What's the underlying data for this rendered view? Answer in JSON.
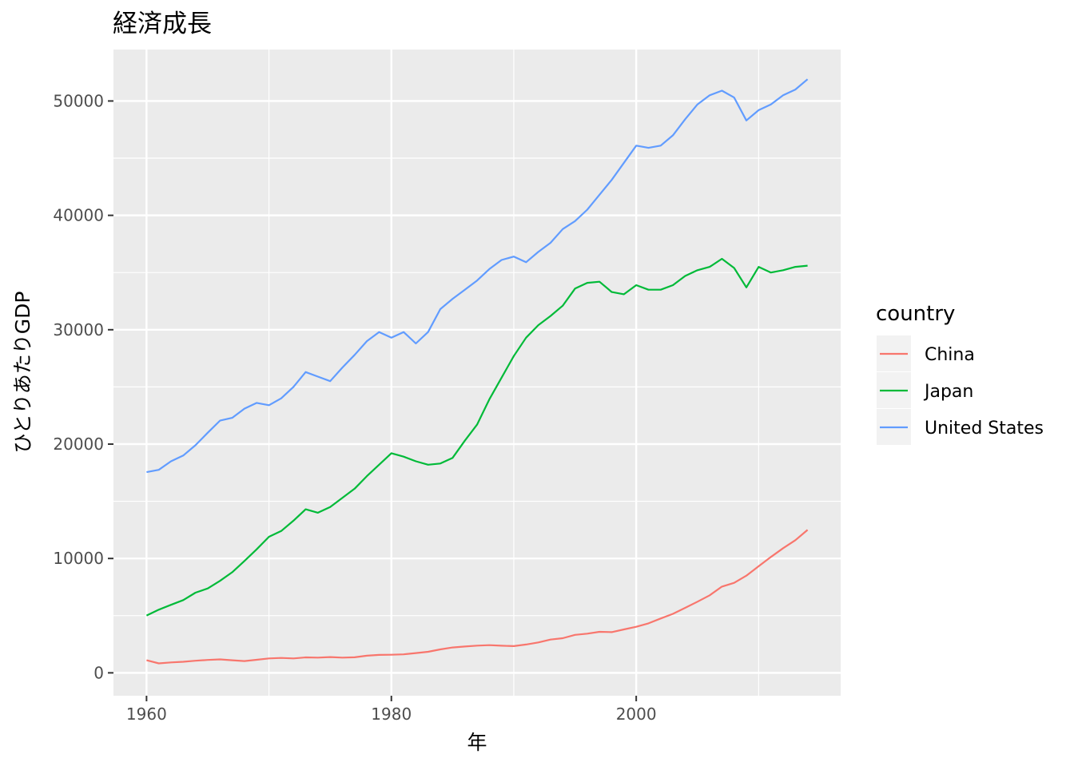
{
  "chart_data": {
    "type": "line",
    "title": "経済成長",
    "xlabel": "年",
    "ylabel": "ひとりあたりGDP",
    "xlim": [
      1957.3,
      2016.7
    ],
    "ylim": [
      -2000,
      54500
    ],
    "x_ticks": [
      1960,
      1980,
      2000
    ],
    "y_ticks": [
      0,
      10000,
      20000,
      30000,
      40000,
      50000
    ],
    "grid": true,
    "legend": {
      "title": "country",
      "position": "right"
    },
    "x": [
      1960,
      1961,
      1962,
      1963,
      1964,
      1965,
      1966,
      1967,
      1968,
      1969,
      1970,
      1971,
      1972,
      1973,
      1974,
      1975,
      1976,
      1977,
      1978,
      1979,
      1980,
      1981,
      1982,
      1983,
      1984,
      1985,
      1986,
      1987,
      1988,
      1989,
      1990,
      1991,
      1992,
      1993,
      1994,
      1995,
      1996,
      1997,
      1998,
      1999,
      2000,
      2001,
      2002,
      2003,
      2004,
      2005,
      2006,
      2007,
      2008,
      2009,
      2010,
      2011,
      2012,
      2013,
      2014
    ],
    "series": [
      {
        "name": "China",
        "color": "#F8766D",
        "values": [
          1100,
          830,
          910,
          970,
          1060,
          1130,
          1180,
          1100,
          1030,
          1140,
          1260,
          1300,
          1260,
          1350,
          1330,
          1380,
          1330,
          1360,
          1500,
          1570,
          1580,
          1620,
          1730,
          1840,
          2050,
          2220,
          2300,
          2380,
          2420,
          2370,
          2340,
          2480,
          2660,
          2910,
          3030,
          3320,
          3430,
          3590,
          3560,
          3800,
          4030,
          4330,
          4750,
          5160,
          5680,
          6220,
          6780,
          7540,
          7870,
          8500,
          9320,
          10130,
          10900,
          11600,
          12500
        ]
      },
      {
        "name": "Japan",
        "color": "#00BA38",
        "values": [
          5010,
          5520,
          5950,
          6360,
          7010,
          7380,
          8040,
          8800,
          9780,
          10800,
          11900,
          12400,
          13300,
          14300,
          14000,
          14500,
          15300,
          16100,
          17200,
          18200,
          19200,
          18900,
          18500,
          18200,
          18300,
          18800,
          20300,
          21700,
          23900,
          25800,
          27700,
          29300,
          30400,
          31200,
          32100,
          33600,
          34100,
          34200,
          33300,
          33100,
          33900,
          33500,
          33500,
          33900,
          34700,
          35200,
          35500,
          36200,
          35400,
          33700,
          35500,
          35000,
          35200,
          35500,
          35600
        ]
      },
      {
        "name": "United States",
        "color": "#619CFF",
        "values": [
          17550,
          17750,
          18500,
          19000,
          19900,
          21000,
          22050,
          22300,
          23100,
          23600,
          23400,
          24000,
          25000,
          26300,
          25900,
          25500,
          26700,
          27800,
          29000,
          29800,
          29300,
          29800,
          28800,
          29800,
          31800,
          32700,
          33500,
          34300,
          35300,
          36100,
          36400,
          35900,
          36800,
          37600,
          38800,
          39500,
          40500,
          41800,
          43100,
          44600,
          46100,
          45900,
          46100,
          47000,
          48400,
          49700,
          50500,
          50900,
          50300,
          48300,
          49200,
          49700,
          50500,
          51000,
          51900
        ]
      }
    ]
  }
}
